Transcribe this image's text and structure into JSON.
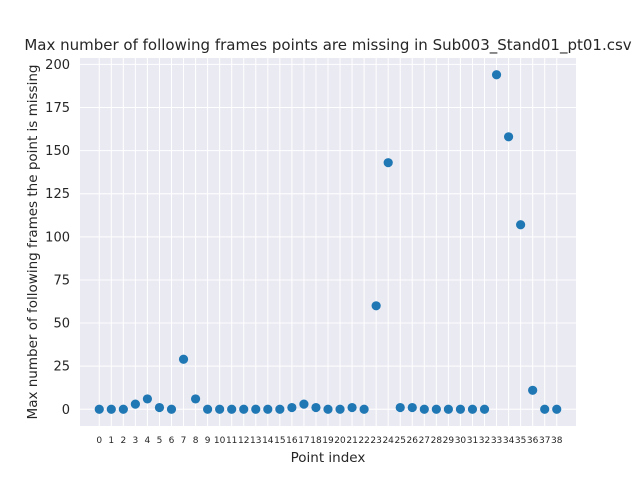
{
  "chart_data": {
    "type": "scatter",
    "title": "Max number of following frames points are missing in Sub003_Stand01_pt01.csv",
    "xlabel": "Point index",
    "ylabel": "Max number of following frames the point is missing",
    "x": [
      0,
      1,
      2,
      3,
      4,
      5,
      6,
      7,
      8,
      9,
      10,
      11,
      12,
      13,
      14,
      15,
      16,
      17,
      18,
      19,
      20,
      21,
      22,
      23,
      24,
      25,
      26,
      27,
      28,
      29,
      30,
      31,
      32,
      33,
      34,
      35,
      36,
      37,
      38
    ],
    "y": [
      0,
      0,
      0,
      3,
      6,
      1,
      0,
      29,
      6,
      0,
      0,
      0,
      0,
      0,
      0,
      0,
      1,
      3,
      1,
      0,
      0,
      1,
      0,
      60,
      143,
      1,
      1,
      0,
      0,
      0,
      0,
      0,
      0,
      194,
      158,
      107,
      11,
      0,
      0
    ],
    "xlim": [
      -1.6,
      39.6
    ],
    "ylim": [
      -9.7,
      203.7
    ],
    "yticks": [
      0,
      25,
      50,
      75,
      100,
      125,
      150,
      175,
      200
    ],
    "grid": true,
    "marker_color": "#1f77b4",
    "background_color": "#eaeaf2",
    "grid_color": "#ffffff"
  }
}
